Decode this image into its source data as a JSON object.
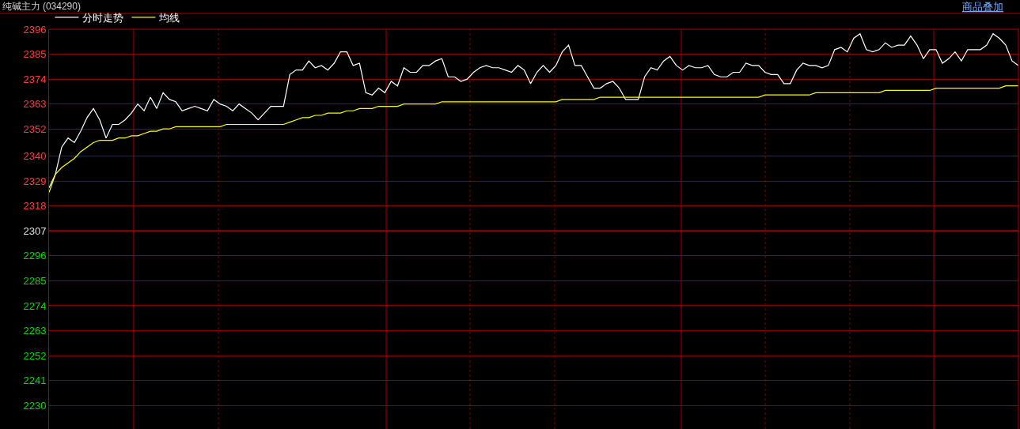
{
  "chart_data": {
    "type": "line",
    "title": "纯碱主力 (034290)",
    "annotations": [
      "商品叠加"
    ],
    "categories": [
      null,
      null,
      null,
      null,
      null,
      null,
      null,
      null,
      null,
      null,
      null,
      null,
      null,
      null,
      null,
      null,
      null,
      null,
      null,
      null,
      null,
      null,
      null,
      null,
      null,
      null,
      null,
      null,
      null,
      null,
      null,
      null,
      null,
      null,
      null,
      null,
      null,
      null,
      null,
      null,
      null,
      null,
      null,
      null,
      null,
      null,
      null,
      null,
      null,
      null,
      null,
      null,
      null,
      null,
      null,
      null,
      null,
      null,
      null,
      null,
      null,
      null,
      null,
      null,
      null,
      null,
      null,
      null,
      null,
      null,
      null,
      null,
      null,
      null,
      null,
      null,
      null,
      null,
      null,
      null,
      null,
      null,
      null,
      null,
      null,
      null,
      null,
      null,
      null,
      null,
      null,
      null,
      null,
      null,
      null,
      null,
      null,
      null,
      null,
      null,
      null,
      null,
      null,
      null,
      null,
      null,
      null,
      null,
      null,
      null,
      null,
      null,
      null,
      null,
      null,
      null,
      null,
      null,
      null,
      null,
      null,
      null,
      null,
      null,
      null,
      null,
      null,
      null,
      null,
      null,
      null,
      null,
      null,
      null,
      null,
      null,
      null,
      null,
      null,
      null,
      null,
      null,
      null,
      null,
      null,
      null,
      null,
      null,
      null,
      null,
      null,
      null,
      null,
      null
    ],
    "ylim": [
      2219.6,
      2396
    ],
    "yticks": [
      2396,
      2385,
      2374,
      2363,
      2352,
      2340,
      2329,
      2318,
      2307,
      2296,
      2285,
      2274,
      2263,
      2252,
      2241,
      2230
    ],
    "tick_labels": "y",
    "grid": true,
    "legend": "top left",
    "marker": "none",
    "line_style": "solid",
    "ref_lines": [
      {
        "axis": "y",
        "value": 2307,
        "color": "#a00000"
      }
    ],
    "series": [
      {
        "name": "分时走势",
        "color": "#ffffff",
        "values": [
          2326,
          2332,
          2344,
          2348,
          2346,
          2351,
          2357,
          2361,
          2356,
          2348,
          2354,
          2354,
          2356,
          2359,
          2363,
          2360,
          2366,
          2361,
          2368,
          2365,
          2364,
          2360,
          2361,
          2362,
          2361,
          2360,
          2365,
          2363,
          2362,
          2360,
          2363,
          2361,
          2359,
          2356,
          2359,
          2362,
          2362,
          2362,
          2376,
          2378,
          2378,
          2382,
          2379,
          2380,
          2378,
          2381,
          2386,
          2386,
          2380,
          2381,
          2368,
          2367,
          2370,
          2368,
          2373,
          2371,
          2379,
          2377,
          2377,
          2380,
          2380,
          2382,
          2383,
          2375,
          2375,
          2373,
          2374,
          2377,
          2379,
          2380,
          2379,
          2379,
          2378,
          2377,
          2380,
          2378,
          2372,
          2377,
          2380,
          2377,
          2380,
          2386,
          2389,
          2380,
          2380,
          2375,
          2370,
          2370,
          2372,
          2373,
          2370,
          2365,
          2365,
          2365,
          2375,
          2379,
          2378,
          2382,
          2384,
          2380,
          2378,
          2380,
          2379,
          2379,
          2380,
          2376,
          2375,
          2375,
          2377,
          2377,
          2381,
          2380,
          2380,
          2377,
          2376,
          2376,
          2372,
          2372,
          2378,
          2381,
          2380,
          2380,
          2379,
          2380,
          2387,
          2388,
          2386,
          2392,
          2394,
          2387,
          2386,
          2387,
          2390,
          2388,
          2389,
          2389,
          2393,
          2389,
          2383,
          2387,
          2387,
          2381,
          2383,
          2386,
          2382,
          2387,
          2387,
          2387,
          2389,
          2394,
          2392,
          2389,
          2382,
          2380
        ]
      },
      {
        "name": "均线",
        "color": "#ffff00",
        "values": [
          2324,
          2332,
          2335,
          2337,
          2339,
          2342,
          2344,
          2346,
          2347,
          2347,
          2347,
          2348,
          2348,
          2349,
          2349,
          2350,
          2351,
          2351,
          2352,
          2352,
          2353,
          2353,
          2353,
          2353,
          2353,
          2353,
          2353,
          2353,
          2354,
          2354,
          2354,
          2354,
          2354,
          2354,
          2354,
          2354,
          2354,
          2354,
          2355,
          2356,
          2357,
          2357,
          2358,
          2358,
          2359,
          2359,
          2359,
          2360,
          2360,
          2361,
          2361,
          2361,
          2362,
          2362,
          2362,
          2362,
          2363,
          2363,
          2363,
          2363,
          2363,
          2363,
          2364,
          2364,
          2364,
          2364,
          2364,
          2364,
          2364,
          2364,
          2364,
          2364,
          2364,
          2364,
          2364,
          2364,
          2364,
          2364,
          2364,
          2364,
          2364,
          2365,
          2365,
          2365,
          2365,
          2365,
          2365,
          2366,
          2366,
          2366,
          2366,
          2366,
          2366,
          2366,
          2366,
          2366,
          2366,
          2366,
          2366,
          2366,
          2366,
          2366,
          2366,
          2366,
          2366,
          2366,
          2366,
          2366,
          2366,
          2366,
          2366,
          2366,
          2366,
          2367,
          2367,
          2367,
          2367,
          2367,
          2367,
          2367,
          2367,
          2368,
          2368,
          2368,
          2368,
          2368,
          2368,
          2368,
          2368,
          2368,
          2368,
          2368,
          2369,
          2369,
          2369,
          2369,
          2369,
          2369,
          2369,
          2369,
          2370,
          2370,
          2370,
          2370,
          2370,
          2370,
          2370,
          2370,
          2370,
          2370,
          2370,
          2371,
          2371,
          2371
        ]
      }
    ]
  }
}
